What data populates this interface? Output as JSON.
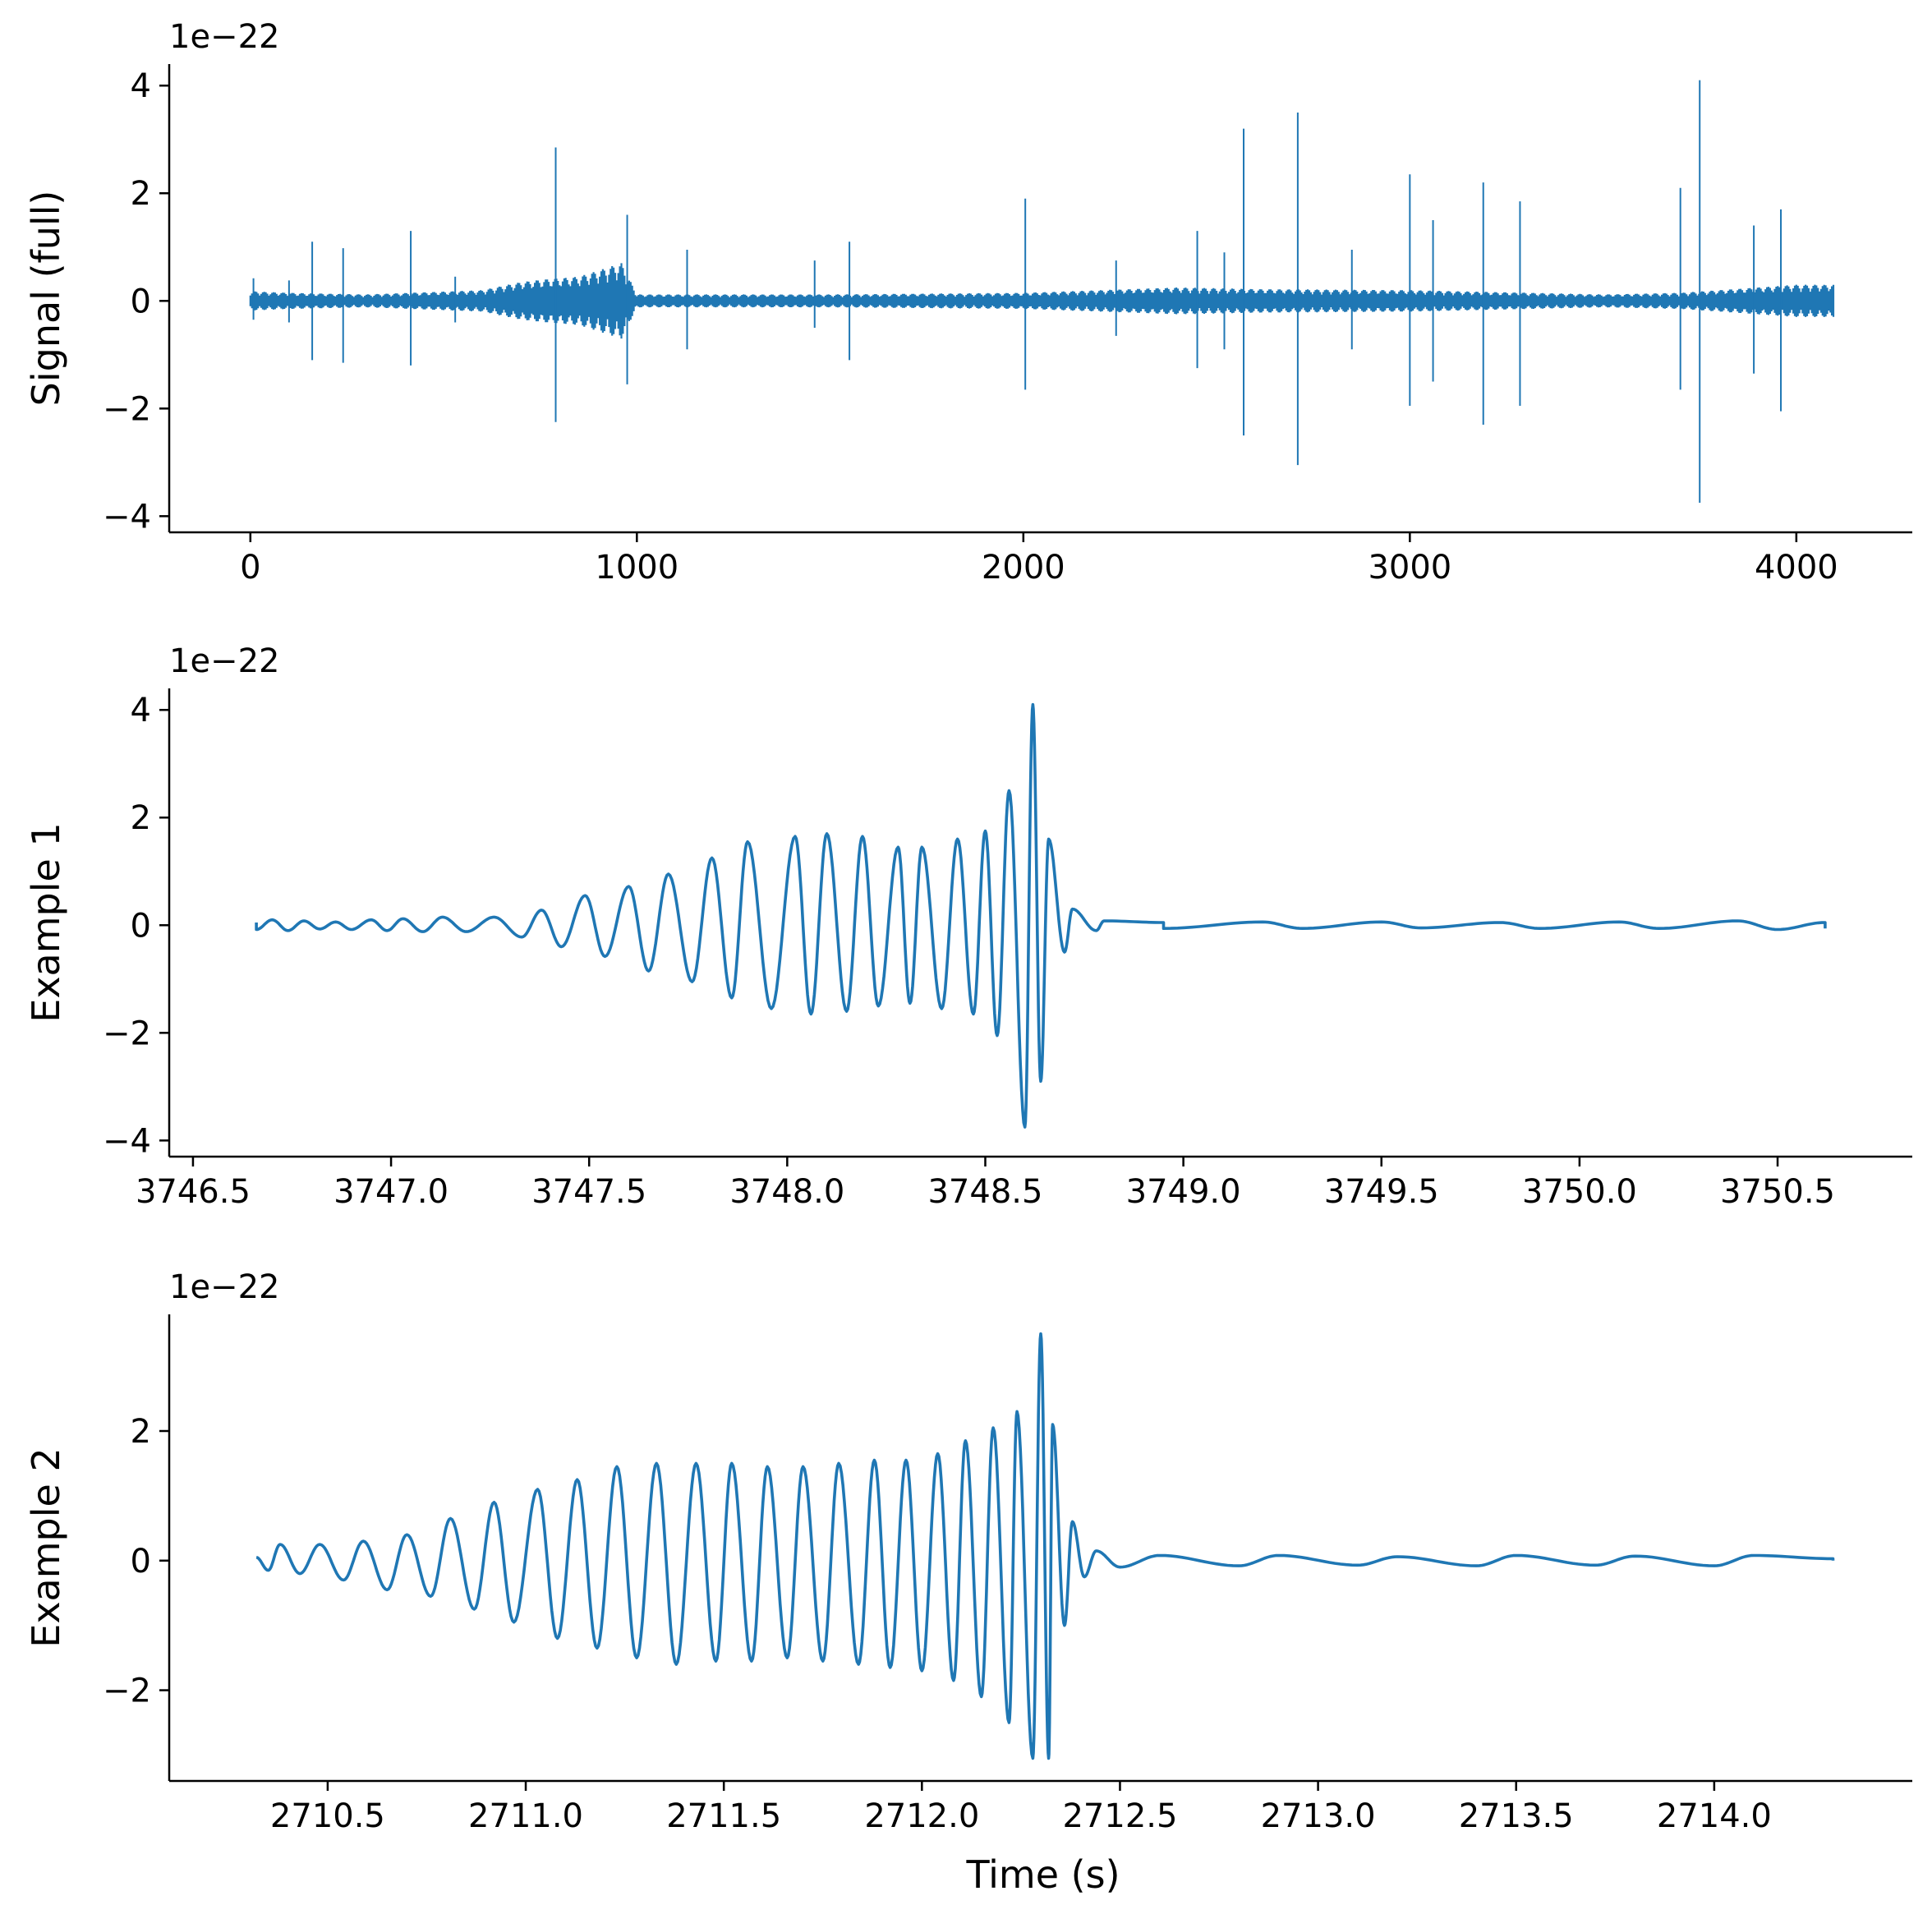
{
  "figure": {
    "line_color": "#1f77b4",
    "axis_color": "#000000",
    "background": "#ffffff",
    "xlabel": "Time (s)"
  },
  "chart_data": [
    {
      "type": "line",
      "title": "",
      "ylabel": "Signal (full)",
      "xlabel": "",
      "offset_text": "1e−22",
      "y_scale": 1e-22,
      "xlim": [
        -210,
        4300
      ],
      "ylim": [
        -4.3,
        4.4
      ],
      "x_ticks": [
        0,
        1000,
        2000,
        3000,
        4000
      ],
      "x_tick_labels": [
        "0",
        "1000",
        "2000",
        "3000",
        "4000"
      ],
      "y_ticks": [
        -4,
        -2,
        0,
        2,
        4
      ],
      "y_tick_labels": [
        "−4",
        "−2",
        "0",
        "2",
        "4"
      ],
      "x_range": [
        0,
        4096
      ],
      "baseline_envelope": [
        [
          0,
          0.18
        ],
        [
          100,
          0.15
        ],
        [
          300,
          0.12
        ],
        [
          600,
          0.2
        ],
        [
          700,
          0.35
        ],
        [
          760,
          0.4
        ],
        [
          850,
          0.45
        ],
        [
          960,
          0.7
        ],
        [
          1000,
          0.12
        ],
        [
          1500,
          0.12
        ],
        [
          2000,
          0.15
        ],
        [
          2400,
          0.25
        ],
        [
          2600,
          0.22
        ],
        [
          3000,
          0.2
        ],
        [
          3500,
          0.12
        ],
        [
          3700,
          0.15
        ],
        [
          4000,
          0.3
        ],
        [
          4096,
          0.3
        ]
      ],
      "spikes": [
        {
          "t": 8,
          "max": 0.42,
          "min": -0.35
        },
        {
          "t": 100,
          "max": 0.38,
          "min": -0.4
        },
        {
          "t": 160,
          "max": 1.1,
          "min": -1.1
        },
        {
          "t": 240,
          "max": 0.98,
          "min": -1.15
        },
        {
          "t": 415,
          "max": 1.3,
          "min": -1.2
        },
        {
          "t": 530,
          "max": 0.45,
          "min": -0.4
        },
        {
          "t": 790,
          "max": 2.85,
          "min": -2.25
        },
        {
          "t": 975,
          "max": 1.6,
          "min": -1.55
        },
        {
          "t": 1130,
          "max": 0.95,
          "min": -0.9
        },
        {
          "t": 1460,
          "max": 0.75,
          "min": -0.5
        },
        {
          "t": 1550,
          "max": 1.1,
          "min": -1.1
        },
        {
          "t": 2005,
          "max": 1.9,
          "min": -1.65
        },
        {
          "t": 2240,
          "max": 0.75,
          "min": -0.65
        },
        {
          "t": 2450,
          "max": 1.3,
          "min": -1.25
        },
        {
          "t": 2570,
          "max": 3.2,
          "min": -2.5
        },
        {
          "t": 2520,
          "max": 0.9,
          "min": -0.9
        },
        {
          "t": 2710,
          "max": 3.5,
          "min": -3.05
        },
        {
          "t": 2850,
          "max": 0.95,
          "min": -0.9
        },
        {
          "t": 3000,
          "max": 2.35,
          "min": -1.95
        },
        {
          "t": 3060,
          "max": 1.5,
          "min": -1.5
        },
        {
          "t": 3190,
          "max": 2.2,
          "min": -2.3
        },
        {
          "t": 3285,
          "max": 1.85,
          "min": -1.95
        },
        {
          "t": 3700,
          "max": 2.1,
          "min": -1.65
        },
        {
          "t": 3750,
          "max": 4.1,
          "min": -3.75
        },
        {
          "t": 3890,
          "max": 1.4,
          "min": -1.35
        },
        {
          "t": 3960,
          "max": 1.7,
          "min": -2.05
        }
      ]
    },
    {
      "type": "line",
      "title": "",
      "ylabel": "Example 1",
      "xlabel": "",
      "offset_text": "1e−22",
      "y_scale": 1e-22,
      "xlim": [
        3746.44,
        3750.84
      ],
      "ylim": [
        -4.3,
        4.4
      ],
      "x_ticks": [
        3746.5,
        3747.0,
        3747.5,
        3748.0,
        3748.5,
        3749.0,
        3749.5,
        3750.0,
        3750.5
      ],
      "x_tick_labels": [
        "3746.5",
        "3747.0",
        "3747.5",
        "3748.0",
        "3748.5",
        "3749.0",
        "3749.5",
        "3750.0",
        "3750.5"
      ],
      "y_ticks": [
        -4,
        -2,
        0,
        2,
        4
      ],
      "y_tick_labels": [
        "−4",
        "−2",
        "0",
        "2",
        "4"
      ],
      "x_range": [
        3746.62,
        3750.62
      ],
      "merger_time": 3748.62,
      "peaks": [
        [
          3746.66,
          0.05
        ],
        [
          3746.7,
          0.1
        ],
        [
          3746.78,
          0.08
        ],
        [
          3746.86,
          0.06
        ],
        [
          3746.95,
          0.1
        ],
        [
          3747.03,
          0.12
        ],
        [
          3747.13,
          0.15
        ],
        [
          3747.26,
          0.15
        ],
        [
          3747.38,
          0.28
        ],
        [
          3747.49,
          0.55
        ],
        [
          3747.6,
          0.72
        ],
        [
          3747.7,
          0.95
        ],
        [
          3747.81,
          1.25
        ],
        [
          3747.9,
          1.55
        ],
        [
          3748.02,
          1.65
        ],
        [
          3748.1,
          1.7
        ],
        [
          3748.19,
          1.65
        ],
        [
          3748.28,
          1.45
        ],
        [
          3748.34,
          1.45
        ],
        [
          3748.43,
          1.6
        ],
        [
          3748.5,
          1.75
        ],
        [
          3748.56,
          2.5
        ],
        [
          3748.62,
          4.1
        ],
        [
          3748.66,
          1.6
        ],
        [
          3748.72,
          0.3
        ],
        [
          3748.8,
          0.08
        ],
        [
          3748.95,
          0.05
        ],
        [
          3749.2,
          0.06
        ],
        [
          3749.5,
          0.06
        ],
        [
          3749.8,
          0.05
        ],
        [
          3750.1,
          0.06
        ],
        [
          3750.4,
          0.08
        ],
        [
          3750.62,
          0.05
        ]
      ],
      "troughs": [
        [
          3746.66,
          -0.08
        ],
        [
          3746.74,
          -0.1
        ],
        [
          3746.82,
          -0.07
        ],
        [
          3746.9,
          -0.08
        ],
        [
          3746.99,
          -0.1
        ],
        [
          3747.08,
          -0.12
        ],
        [
          3747.19,
          -0.12
        ],
        [
          3747.33,
          -0.22
        ],
        [
          3747.43,
          -0.4
        ],
        [
          3747.54,
          -0.58
        ],
        [
          3747.65,
          -0.85
        ],
        [
          3747.76,
          -1.05
        ],
        [
          3747.86,
          -1.35
        ],
        [
          3747.96,
          -1.55
        ],
        [
          3748.06,
          -1.65
        ],
        [
          3748.15,
          -1.6
        ],
        [
          3748.23,
          -1.5
        ],
        [
          3748.31,
          -1.45
        ],
        [
          3748.39,
          -1.55
        ],
        [
          3748.47,
          -1.65
        ],
        [
          3748.53,
          -2.05
        ],
        [
          3748.6,
          -3.75
        ],
        [
          3748.64,
          -2.9
        ],
        [
          3748.7,
          -0.5
        ],
        [
          3748.78,
          -0.1
        ],
        [
          3748.95,
          -0.06
        ],
        [
          3749.3,
          -0.06
        ],
        [
          3749.6,
          -0.05
        ],
        [
          3749.9,
          -0.06
        ],
        [
          3750.2,
          -0.06
        ],
        [
          3750.5,
          -0.08
        ],
        [
          3750.62,
          -0.06
        ]
      ]
    },
    {
      "type": "line",
      "title": "",
      "ylabel": "Example 2",
      "xlabel": "Time (s)",
      "offset_text": "1e−22",
      "y_scale": 1e-22,
      "xlim": [
        2710.1,
        2714.5
      ],
      "ylim": [
        -3.4,
        3.8
      ],
      "x_ticks": [
        2710.5,
        2711.0,
        2711.5,
        2712.0,
        2712.5,
        2713.0,
        2713.5,
        2714.0
      ],
      "x_tick_labels": [
        "2710.5",
        "2711.0",
        "2711.5",
        "2712.0",
        "2712.5",
        "2713.0",
        "2713.5",
        "2714.0"
      ],
      "y_ticks": [
        -2,
        0,
        2
      ],
      "y_tick_labels": [
        "−2",
        "0",
        "2"
      ],
      "x_range": [
        2710.3,
        2714.3
      ],
      "merger_time": 2712.3,
      "peaks": [
        [
          2710.32,
          0.05
        ],
        [
          2710.38,
          0.25
        ],
        [
          2710.48,
          0.25
        ],
        [
          2710.59,
          0.3
        ],
        [
          2710.7,
          0.4
        ],
        [
          2710.81,
          0.65
        ],
        [
          2710.92,
          0.9
        ],
        [
          2711.03,
          1.1
        ],
        [
          2711.13,
          1.25
        ],
        [
          2711.23,
          1.45
        ],
        [
          2711.33,
          1.5
        ],
        [
          2711.43,
          1.5
        ],
        [
          2711.52,
          1.5
        ],
        [
          2711.61,
          1.45
        ],
        [
          2711.7,
          1.45
        ],
        [
          2711.79,
          1.5
        ],
        [
          2711.88,
          1.55
        ],
        [
          2711.96,
          1.55
        ],
        [
          2712.04,
          1.65
        ],
        [
          2712.11,
          1.85
        ],
        [
          2712.18,
          2.05
        ],
        [
          2712.24,
          2.3
        ],
        [
          2712.3,
          3.5
        ],
        [
          2712.33,
          2.1
        ],
        [
          2712.38,
          0.6
        ],
        [
          2712.44,
          0.15
        ],
        [
          2712.6,
          0.08
        ],
        [
          2712.9,
          0.08
        ],
        [
          2713.2,
          0.06
        ],
        [
          2713.5,
          0.08
        ],
        [
          2713.8,
          0.07
        ],
        [
          2714.1,
          0.08
        ],
        [
          2714.3,
          0.03
        ]
      ],
      "troughs": [
        [
          2710.35,
          -0.15
        ],
        [
          2710.43,
          -0.2
        ],
        [
          2710.54,
          -0.3
        ],
        [
          2710.65,
          -0.45
        ],
        [
          2710.76,
          -0.55
        ],
        [
          2710.87,
          -0.75
        ],
        [
          2710.97,
          -0.95
        ],
        [
          2711.08,
          -1.2
        ],
        [
          2711.18,
          -1.35
        ],
        [
          2711.28,
          -1.5
        ],
        [
          2711.38,
          -1.6
        ],
        [
          2711.48,
          -1.55
        ],
        [
          2711.57,
          -1.55
        ],
        [
          2711.66,
          -1.5
        ],
        [
          2711.75,
          -1.55
        ],
        [
          2711.84,
          -1.6
        ],
        [
          2711.92,
          -1.65
        ],
        [
          2712.0,
          -1.7
        ],
        [
          2712.08,
          -1.85
        ],
        [
          2712.15,
          -2.1
        ],
        [
          2712.22,
          -2.5
        ],
        [
          2712.28,
          -3.05
        ],
        [
          2712.32,
          -3.05
        ],
        [
          2712.36,
          -1.0
        ],
        [
          2712.41,
          -0.25
        ],
        [
          2712.5,
          -0.1
        ],
        [
          2712.8,
          -0.08
        ],
        [
          2713.1,
          -0.07
        ],
        [
          2713.4,
          -0.08
        ],
        [
          2713.7,
          -0.07
        ],
        [
          2714.0,
          -0.08
        ],
        [
          2714.3,
          0.0
        ]
      ]
    }
  ]
}
